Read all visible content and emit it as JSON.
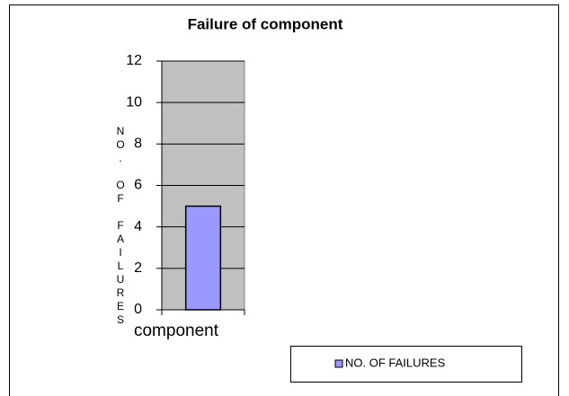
{
  "chart_data": {
    "type": "bar",
    "title": "Failure of component",
    "ylabel": "NO. OF FAILURES",
    "categories": [
      "component"
    ],
    "series": [
      {
        "name": "NO. OF FAILURES",
        "color": "#9999ff",
        "values": [
          5
        ]
      }
    ],
    "ylim": [
      0,
      12
    ],
    "yticks": [
      0,
      2,
      4,
      6,
      8,
      10,
      12
    ],
    "grid": true,
    "legend": "bottom-right"
  }
}
